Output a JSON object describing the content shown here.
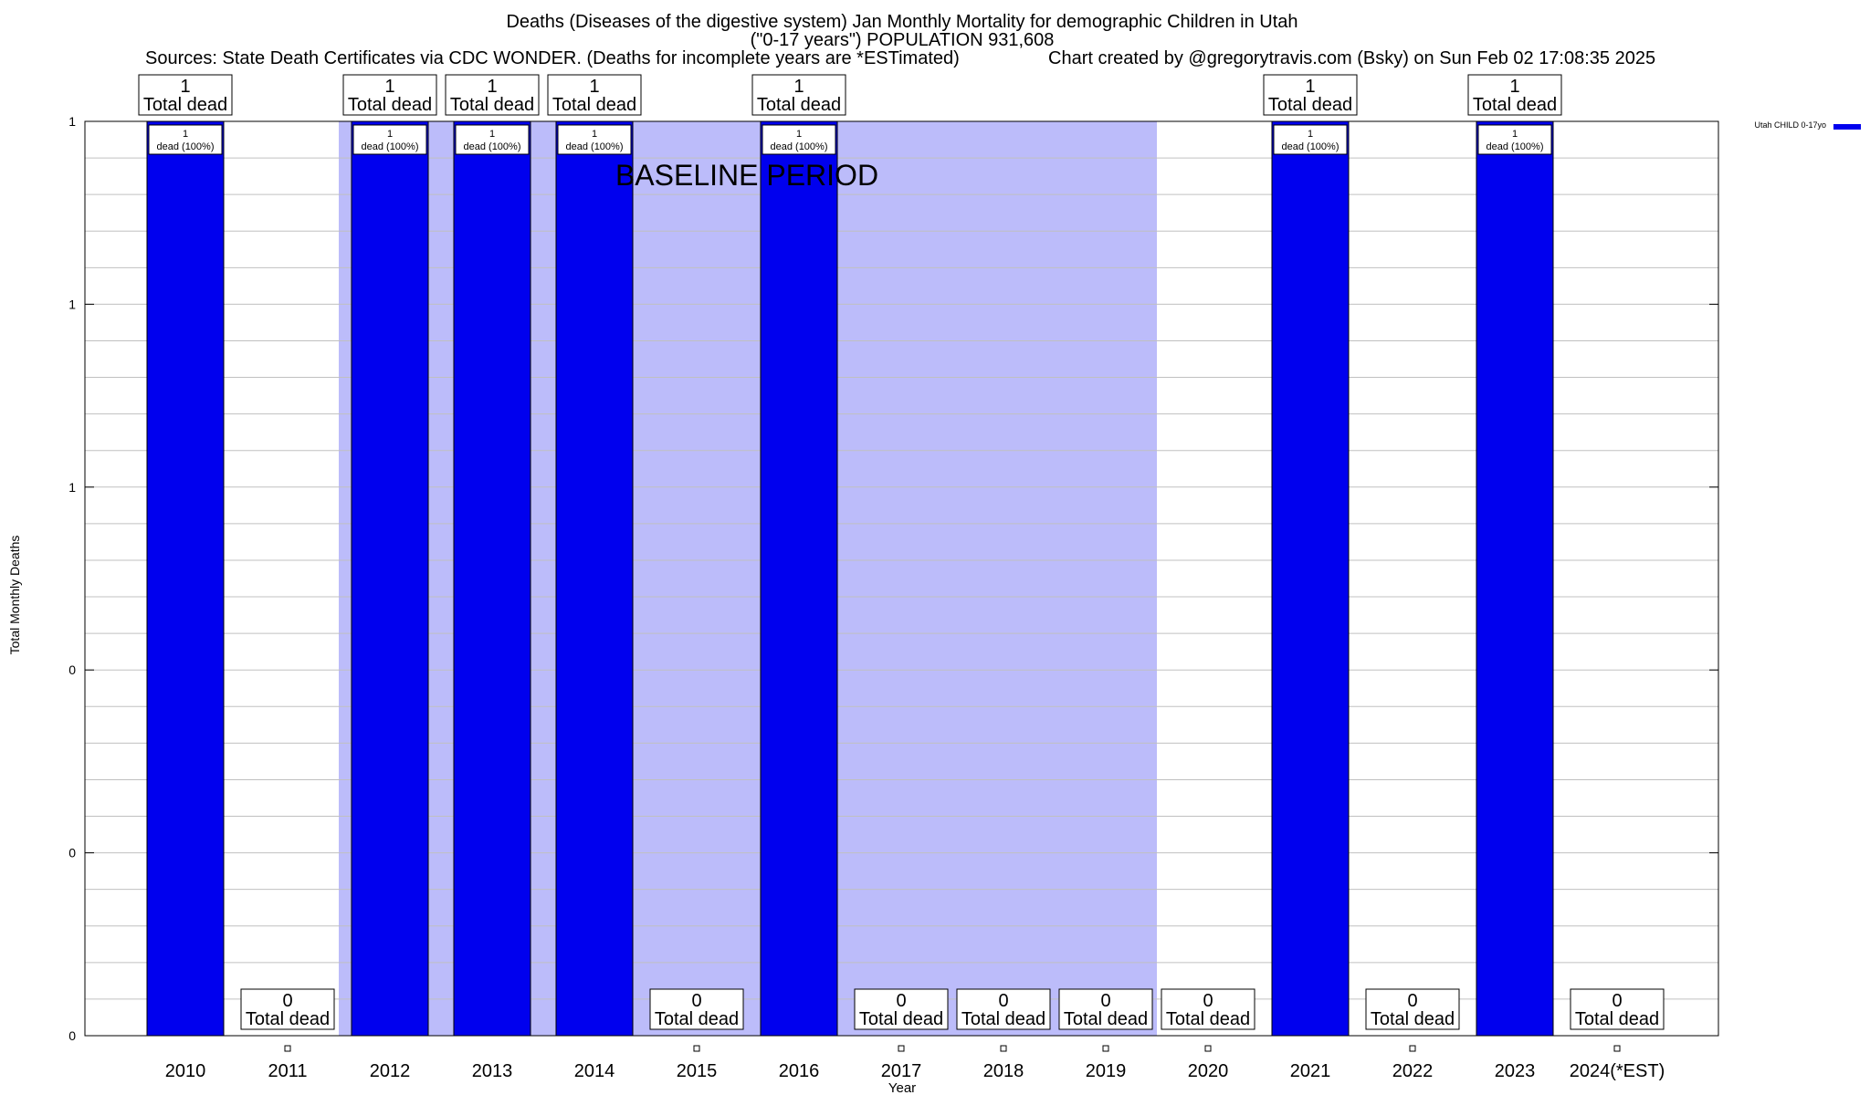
{
  "header": {
    "title_line1": "Deaths (Diseases of the digestive system) Jan Monthly Mortality for demographic Children in Utah",
    "title_line2": "(\"0-17 years\") POPULATION 931,608",
    "sources": "Sources: State Death Certificates via CDC WONDER. (Deaths for incomplete years are *ESTimated)",
    "credit": "Chart created by @gregorytravis.com (Bsky) on Sun Feb 02 17:08:35 2025"
  },
  "chart_data": {
    "type": "bar",
    "title": "Deaths (Diseases of the digestive system) Jan Monthly Mortality for demographic Children in Utah",
    "xlabel": "Year",
    "ylabel": "Total Monthly Deaths",
    "categories": [
      "2010",
      "2011",
      "2012",
      "2013",
      "2014",
      "2015",
      "2016",
      "2017",
      "2018",
      "2019",
      "2020",
      "2021",
      "2022",
      "2023",
      "2024(*EST)"
    ],
    "series": [
      {
        "name": "Utah CHILD 0-17yo",
        "color": "#0000ee",
        "values": [
          1,
          0,
          1,
          1,
          1,
          0,
          1,
          0,
          0,
          0,
          0,
          1,
          0,
          1,
          0
        ]
      }
    ],
    "ylim": [
      0,
      1
    ],
    "ytick_values": [
      0,
      0.2,
      0.4,
      0.6,
      0.8,
      1.0
    ],
    "ytick_labels": [
      "0",
      "0",
      "0",
      "1",
      "1",
      "1"
    ],
    "bar_total_label": "Total dead",
    "bar_pct_label": "dead (100%)",
    "baseline_label": "BASELINE PERIOD",
    "baseline_range": [
      "2012",
      "2019"
    ],
    "baseline_color": "#bcbcfa",
    "grid": true,
    "legend_position": "top-right"
  }
}
